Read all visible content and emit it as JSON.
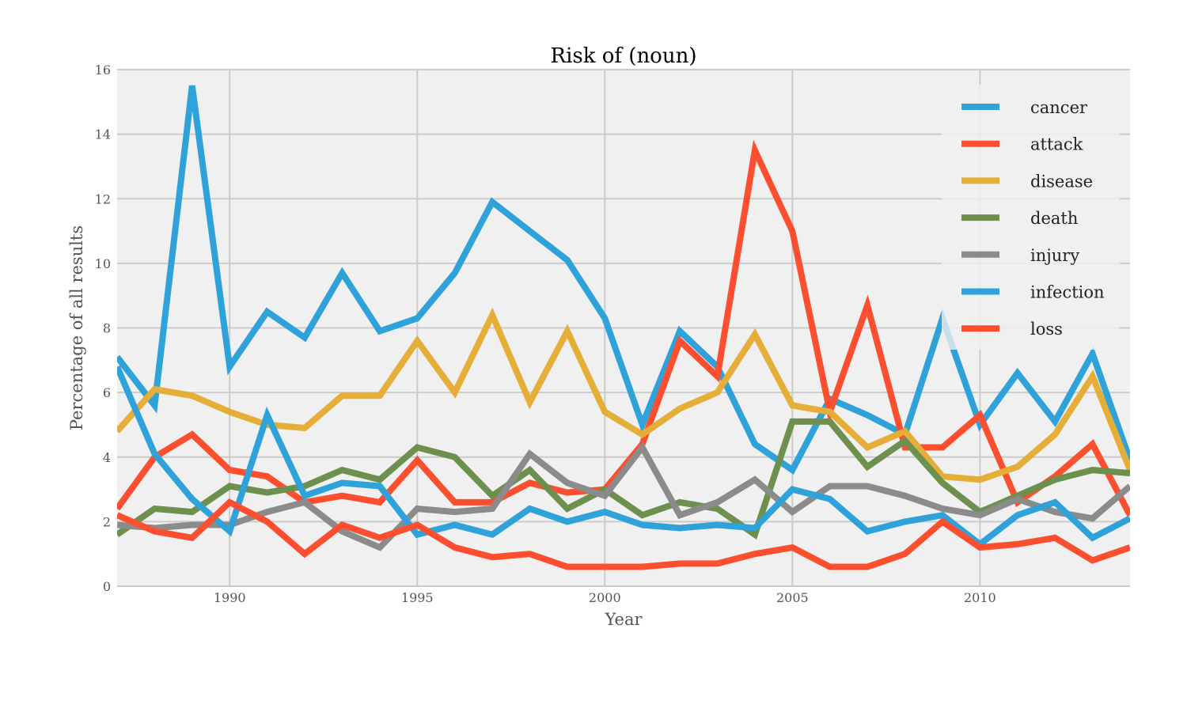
{
  "chart_data": {
    "type": "line",
    "title": "Risk of (noun)",
    "xlabel": "Year",
    "ylabel": "Percentage of all results",
    "xlim": [
      1987,
      2014
    ],
    "ylim": [
      0,
      16
    ],
    "xticks": [
      1990,
      1995,
      2000,
      2005,
      2010
    ],
    "yticks": [
      0,
      2,
      4,
      6,
      8,
      10,
      12,
      14,
      16
    ],
    "grid": true,
    "legend_position": "top-right",
    "x": [
      1987,
      1988,
      1989,
      1990,
      1991,
      1992,
      1993,
      1994,
      1995,
      1996,
      1997,
      1998,
      1999,
      2000,
      2001,
      2002,
      2003,
      2004,
      2005,
      2006,
      2007,
      2008,
      2009,
      2010,
      2011,
      2012,
      2013,
      2014
    ],
    "series": [
      {
        "name": "cancer",
        "color": "#30a2da",
        "values": [
          7.1,
          5.6,
          15.5,
          6.8,
          8.5,
          7.7,
          9.7,
          7.9,
          8.3,
          9.7,
          11.9,
          11.0,
          10.1,
          8.3,
          5.0,
          7.9,
          6.8,
          4.4,
          3.6,
          5.8,
          5.3,
          4.7,
          8.3,
          5.0,
          6.6,
          5.1,
          7.2,
          3.9
        ]
      },
      {
        "name": "attack",
        "color": "#fc4f30",
        "values": [
          2.4,
          4.0,
          4.7,
          3.6,
          3.4,
          2.6,
          2.8,
          2.6,
          3.9,
          2.6,
          2.6,
          3.2,
          2.9,
          3.0,
          4.4,
          7.6,
          6.5,
          13.5,
          11.0,
          5.4,
          8.7,
          4.3,
          4.3,
          5.3,
          2.6,
          3.4,
          4.4,
          2.2
        ]
      },
      {
        "name": "disease",
        "color": "#e5ae38",
        "values": [
          4.8,
          6.1,
          5.9,
          5.4,
          5.0,
          4.9,
          5.9,
          5.9,
          7.6,
          6.0,
          8.4,
          5.7,
          7.9,
          5.4,
          4.7,
          5.5,
          6.0,
          7.8,
          5.6,
          5.4,
          4.3,
          4.8,
          3.4,
          3.3,
          3.7,
          4.7,
          6.5,
          3.6
        ]
      },
      {
        "name": "death",
        "color": "#6d904f",
        "values": [
          1.6,
          2.4,
          2.3,
          3.1,
          2.9,
          3.1,
          3.6,
          3.3,
          4.3,
          4.0,
          2.8,
          3.6,
          2.4,
          3.0,
          2.2,
          2.6,
          2.4,
          1.6,
          5.1,
          5.1,
          3.7,
          4.5,
          3.2,
          2.3,
          2.8,
          3.3,
          3.6,
          3.5
        ]
      },
      {
        "name": "injury",
        "color": "#8b8b8b",
        "values": [
          1.9,
          1.8,
          1.9,
          1.9,
          2.3,
          2.6,
          1.7,
          1.2,
          2.4,
          2.3,
          2.4,
          4.1,
          3.2,
          2.8,
          4.3,
          2.2,
          2.6,
          3.3,
          2.3,
          3.1,
          3.1,
          2.8,
          2.4,
          2.2,
          2.7,
          2.3,
          2.1,
          3.1
        ]
      },
      {
        "name": "infection",
        "color": "#30a2da",
        "values": [
          6.8,
          4.1,
          2.7,
          1.7,
          5.3,
          2.8,
          3.2,
          3.1,
          1.6,
          1.9,
          1.6,
          2.4,
          2.0,
          2.3,
          1.9,
          1.8,
          1.9,
          1.8,
          3.0,
          2.7,
          1.7,
          2.0,
          2.2,
          1.3,
          2.2,
          2.6,
          1.5,
          2.1
        ]
      },
      {
        "name": "loss",
        "color": "#fc4f30",
        "values": [
          2.2,
          1.7,
          1.5,
          2.6,
          2.0,
          1.0,
          1.9,
          1.5,
          1.9,
          1.2,
          0.9,
          1.0,
          0.6,
          0.6,
          0.6,
          0.7,
          0.7,
          1.0,
          1.2,
          0.6,
          0.6,
          1.0,
          2.0,
          1.2,
          1.3,
          1.5,
          0.8,
          1.2
        ]
      }
    ]
  }
}
